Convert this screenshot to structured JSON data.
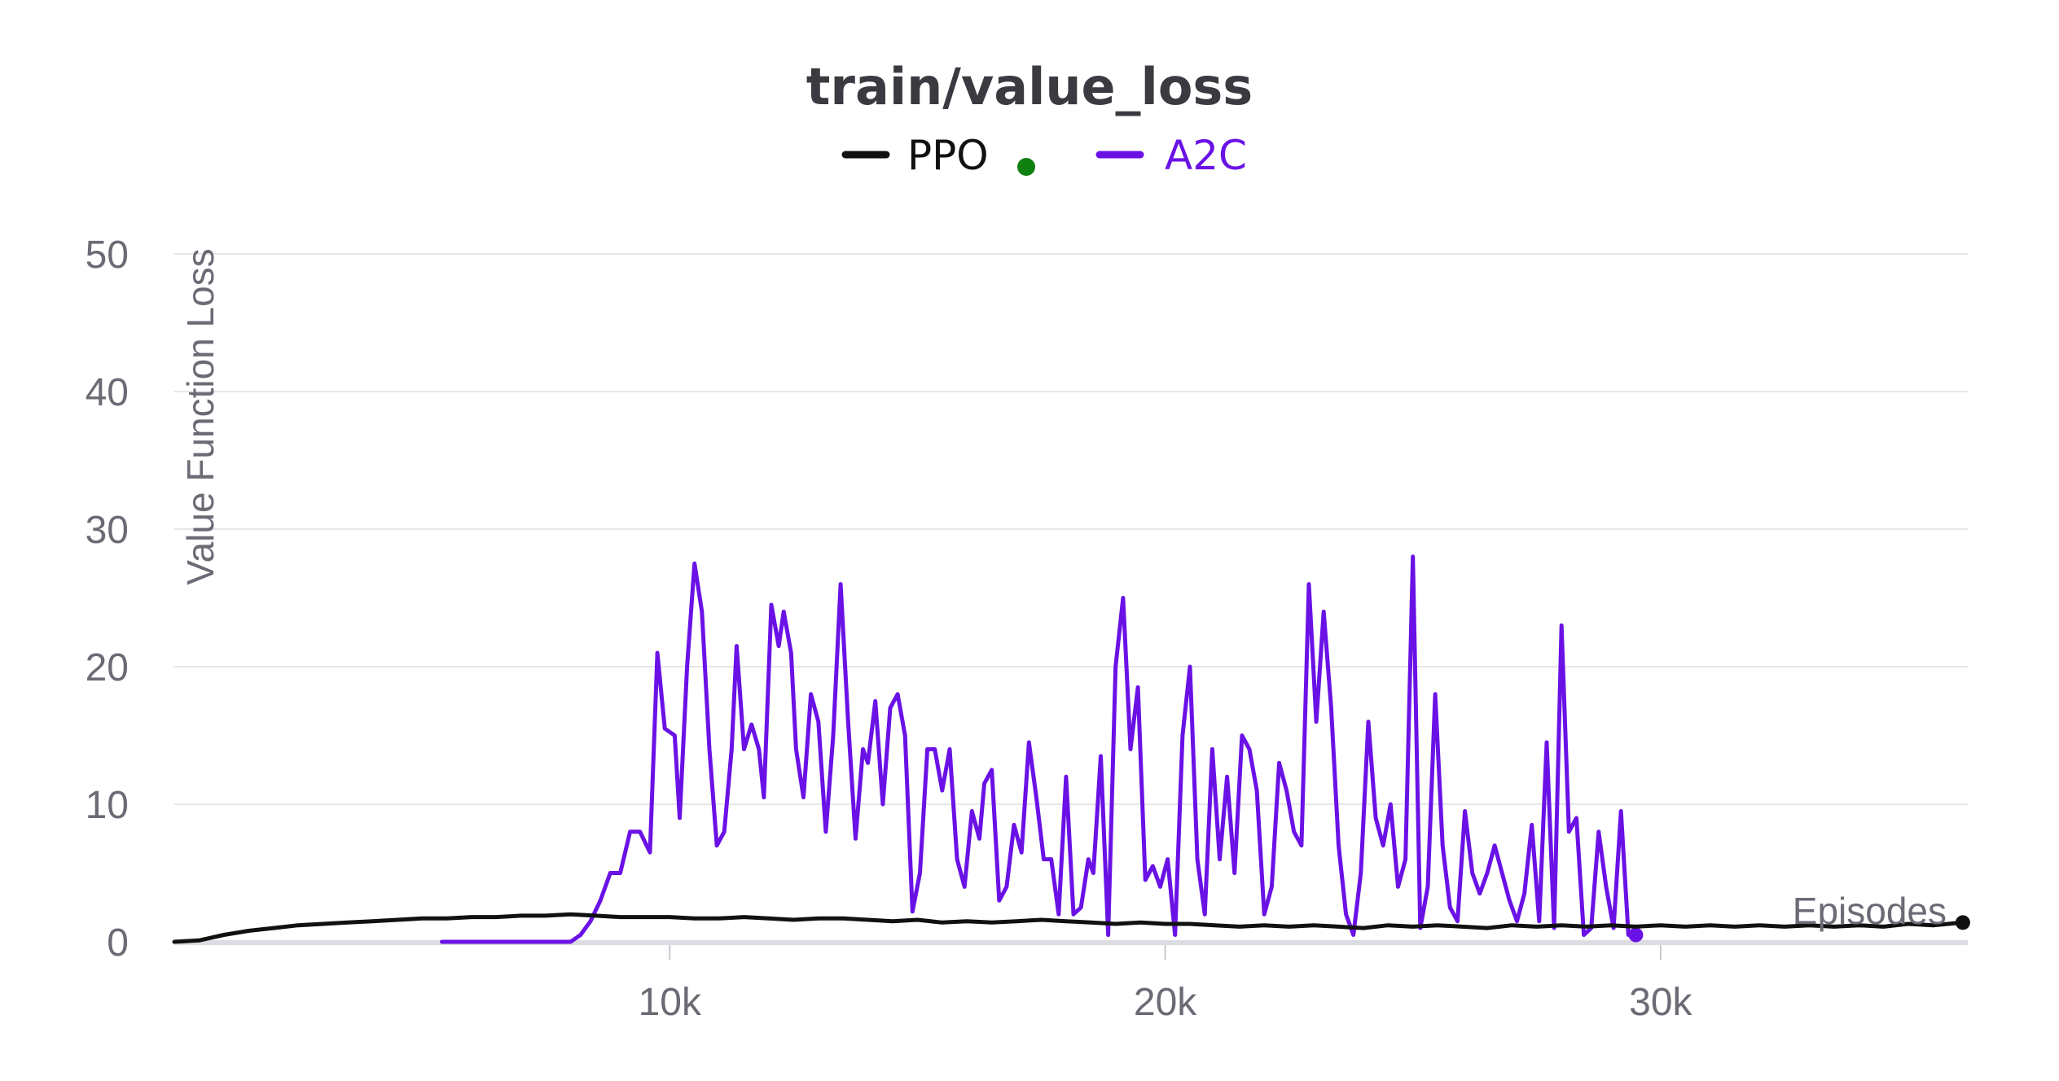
{
  "chart_data": {
    "type": "line",
    "title": "train/value_loss",
    "xlabel": "Episodes",
    "ylabel": "Value Function Loss",
    "xlim": [
      0,
      36200
    ],
    "ylim": [
      0,
      50
    ],
    "grid": true,
    "legend_position": "top-center",
    "y_ticks": [
      {
        "value": 0,
        "label": "0"
      },
      {
        "value": 10,
        "label": "10"
      },
      {
        "value": 20,
        "label": "20"
      },
      {
        "value": 30,
        "label": "30"
      },
      {
        "value": 40,
        "label": "40"
      },
      {
        "value": 50,
        "label": "50"
      }
    ],
    "x_ticks": [
      {
        "value": 10000,
        "label": "10k"
      },
      {
        "value": 20000,
        "label": "20k"
      },
      {
        "value": 30000,
        "label": "30k"
      }
    ],
    "series": [
      {
        "name": "PPO",
        "color": "#111111",
        "marker_color": "#108010",
        "points": [
          [
            0,
            0
          ],
          [
            500,
            0.1
          ],
          [
            1000,
            0.5
          ],
          [
            1500,
            0.8
          ],
          [
            2000,
            1.0
          ],
          [
            2500,
            1.2
          ],
          [
            3000,
            1.3
          ],
          [
            3500,
            1.4
          ],
          [
            4000,
            1.5
          ],
          [
            4500,
            1.6
          ],
          [
            5000,
            1.7
          ],
          [
            5500,
            1.7
          ],
          [
            6000,
            1.8
          ],
          [
            6500,
            1.8
          ],
          [
            7000,
            1.9
          ],
          [
            7500,
            1.9
          ],
          [
            8000,
            2.0
          ],
          [
            8500,
            1.9
          ],
          [
            9000,
            1.8
          ],
          [
            9500,
            1.8
          ],
          [
            10000,
            1.8
          ],
          [
            10500,
            1.7
          ],
          [
            11000,
            1.7
          ],
          [
            11500,
            1.8
          ],
          [
            12000,
            1.7
          ],
          [
            12500,
            1.6
          ],
          [
            13000,
            1.7
          ],
          [
            13500,
            1.7
          ],
          [
            14000,
            1.6
          ],
          [
            14500,
            1.5
          ],
          [
            15000,
            1.6
          ],
          [
            15500,
            1.4
          ],
          [
            16000,
            1.5
          ],
          [
            16500,
            1.4
          ],
          [
            17000,
            1.5
          ],
          [
            17500,
            1.6
          ],
          [
            18000,
            1.5
          ],
          [
            18500,
            1.4
          ],
          [
            19000,
            1.3
          ],
          [
            19500,
            1.4
          ],
          [
            20000,
            1.3
          ],
          [
            20500,
            1.3
          ],
          [
            21000,
            1.2
          ],
          [
            21500,
            1.1
          ],
          [
            22000,
            1.2
          ],
          [
            22500,
            1.1
          ],
          [
            23000,
            1.2
          ],
          [
            23500,
            1.1
          ],
          [
            24000,
            1.0
          ],
          [
            24500,
            1.2
          ],
          [
            25000,
            1.1
          ],
          [
            25500,
            1.2
          ],
          [
            26000,
            1.1
          ],
          [
            26500,
            1.0
          ],
          [
            27000,
            1.2
          ],
          [
            27500,
            1.1
          ],
          [
            28000,
            1.2
          ],
          [
            28500,
            1.1
          ],
          [
            29000,
            1.2
          ],
          [
            29500,
            1.1
          ],
          [
            30000,
            1.2
          ],
          [
            30500,
            1.1
          ],
          [
            31000,
            1.2
          ],
          [
            31500,
            1.1
          ],
          [
            32000,
            1.2
          ],
          [
            32500,
            1.1
          ],
          [
            33000,
            1.2
          ],
          [
            33500,
            1.1
          ],
          [
            34000,
            1.2
          ],
          [
            34500,
            1.1
          ],
          [
            35000,
            1.3
          ],
          [
            35500,
            1.2
          ],
          [
            36100,
            1.4
          ]
        ]
      },
      {
        "name": "A2C",
        "color": "#6a12e6",
        "points": [
          [
            5400,
            0
          ],
          [
            8000,
            0
          ],
          [
            8200,
            0.5
          ],
          [
            8400,
            1.5
          ],
          [
            8600,
            3.0
          ],
          [
            8800,
            5.0
          ],
          [
            9000,
            5.0
          ],
          [
            9200,
            8.0
          ],
          [
            9400,
            8.0
          ],
          [
            9600,
            6.5
          ],
          [
            9750,
            21
          ],
          [
            9900,
            15.5
          ],
          [
            10100,
            15
          ],
          [
            10200,
            9
          ],
          [
            10350,
            20
          ],
          [
            10500,
            27.5
          ],
          [
            10650,
            24
          ],
          [
            10800,
            14
          ],
          [
            10950,
            7
          ],
          [
            11100,
            8
          ],
          [
            11250,
            14
          ],
          [
            11350,
            21.5
          ],
          [
            11500,
            14
          ],
          [
            11650,
            15.8
          ],
          [
            11800,
            14
          ],
          [
            11900,
            10.5
          ],
          [
            12050,
            24.5
          ],
          [
            12200,
            21.5
          ],
          [
            12300,
            24
          ],
          [
            12450,
            21
          ],
          [
            12550,
            14
          ],
          [
            12700,
            10.5
          ],
          [
            12850,
            18
          ],
          [
            13000,
            16
          ],
          [
            13150,
            8
          ],
          [
            13300,
            15
          ],
          [
            13450,
            26
          ],
          [
            13600,
            16
          ],
          [
            13750,
            7.5
          ],
          [
            13900,
            14
          ],
          [
            14000,
            13
          ],
          [
            14150,
            17.5
          ],
          [
            14300,
            10
          ],
          [
            14450,
            17
          ],
          [
            14600,
            18
          ],
          [
            14750,
            15
          ],
          [
            14900,
            2.2
          ],
          [
            15050,
            5
          ],
          [
            15200,
            14
          ],
          [
            15350,
            14
          ],
          [
            15500,
            11
          ],
          [
            15650,
            14
          ],
          [
            15800,
            6
          ],
          [
            15950,
            4
          ],
          [
            16100,
            9.5
          ],
          [
            16250,
            7.5
          ],
          [
            16350,
            11.5
          ],
          [
            16500,
            12.5
          ],
          [
            16650,
            3
          ],
          [
            16800,
            4
          ],
          [
            16950,
            8.5
          ],
          [
            17100,
            6.5
          ],
          [
            17250,
            14.5
          ],
          [
            17400,
            10.5
          ],
          [
            17550,
            6
          ],
          [
            17700,
            6
          ],
          [
            17850,
            2
          ],
          [
            18000,
            12
          ],
          [
            18150,
            2
          ],
          [
            18300,
            2.5
          ],
          [
            18450,
            6
          ],
          [
            18550,
            5
          ],
          [
            18700,
            13.5
          ],
          [
            18850,
            0.5
          ],
          [
            19000,
            20
          ],
          [
            19150,
            25
          ],
          [
            19300,
            14
          ],
          [
            19450,
            18.5
          ],
          [
            19600,
            4.5
          ],
          [
            19750,
            5.5
          ],
          [
            19900,
            4
          ],
          [
            20050,
            6
          ],
          [
            20200,
            0.5
          ],
          [
            20350,
            15
          ],
          [
            20500,
            20
          ],
          [
            20650,
            6
          ],
          [
            20800,
            2
          ],
          [
            20950,
            14
          ],
          [
            21100,
            6
          ],
          [
            21250,
            12
          ],
          [
            21400,
            5
          ],
          [
            21550,
            15
          ],
          [
            21700,
            14
          ],
          [
            21850,
            11
          ],
          [
            22000,
            2
          ],
          [
            22150,
            4
          ],
          [
            22300,
            13
          ],
          [
            22450,
            11
          ],
          [
            22600,
            8
          ],
          [
            22750,
            7
          ],
          [
            22900,
            26
          ],
          [
            23050,
            16
          ],
          [
            23200,
            24
          ],
          [
            23350,
            17
          ],
          [
            23500,
            7
          ],
          [
            23650,
            2
          ],
          [
            23800,
            0.5
          ],
          [
            23950,
            5
          ],
          [
            24100,
            16
          ],
          [
            24250,
            9
          ],
          [
            24400,
            7
          ],
          [
            24550,
            10
          ],
          [
            24700,
            4
          ],
          [
            24850,
            6
          ],
          [
            25000,
            28
          ],
          [
            25150,
            1
          ],
          [
            25300,
            4
          ],
          [
            25450,
            18
          ],
          [
            25600,
            7
          ],
          [
            25750,
            2.5
          ],
          [
            25900,
            1.5
          ],
          [
            26050,
            9.5
          ],
          [
            26200,
            5
          ],
          [
            26350,
            3.5
          ],
          [
            26500,
            5
          ],
          [
            26650,
            7
          ],
          [
            26800,
            5
          ],
          [
            26950,
            3
          ],
          [
            27100,
            1.5
          ],
          [
            27250,
            3.5
          ],
          [
            27400,
            8.5
          ],
          [
            27550,
            1.5
          ],
          [
            27700,
            14.5
          ],
          [
            27850,
            1
          ],
          [
            28000,
            23
          ],
          [
            28150,
            8
          ],
          [
            28300,
            9
          ],
          [
            28450,
            0.5
          ],
          [
            28600,
            1
          ],
          [
            28750,
            8
          ],
          [
            28900,
            4
          ],
          [
            29050,
            1
          ],
          [
            29200,
            9.5
          ],
          [
            29350,
            0.5
          ],
          [
            29500,
            0.5
          ]
        ]
      }
    ]
  }
}
